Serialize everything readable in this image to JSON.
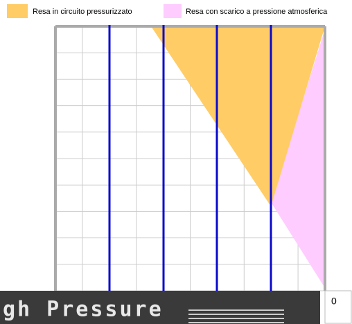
{
  "legend": [
    {
      "label": "Resa in circuito pressurizzato",
      "color": "#ffcc66"
    },
    {
      "label": "Resa con scarico a pressione atmosferica",
      "color": "#ffccff"
    }
  ],
  "corner_value": "0",
  "banner": {
    "text": "gh Pressure"
  }
}
